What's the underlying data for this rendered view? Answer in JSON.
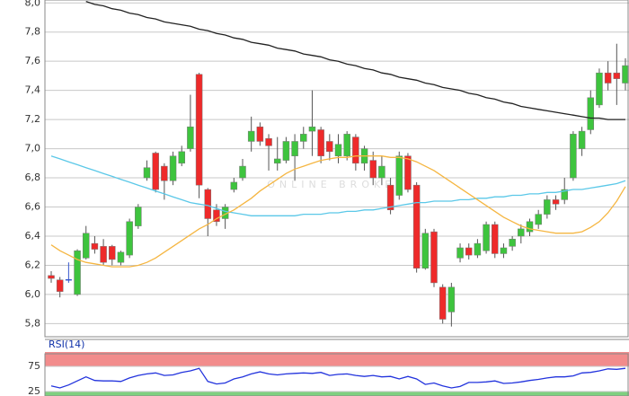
{
  "chart_data": [
    {
      "type": "candlestick",
      "watermark": "ONLINE BROKER",
      "ylim": [
        5.71,
        8.02
      ],
      "yticks": [
        {
          "value": 5.8,
          "label": "5,8"
        },
        {
          "value": 6.0,
          "label": "6,0"
        },
        {
          "value": 6.2,
          "label": "6,2"
        },
        {
          "value": 6.4,
          "label": "6,4"
        },
        {
          "value": 6.6,
          "label": "6,6"
        },
        {
          "value": 6.8,
          "label": "6,8"
        },
        {
          "value": 7.0,
          "label": "7,0"
        },
        {
          "value": 7.2,
          "label": "7,2"
        },
        {
          "value": 7.4,
          "label": "7,4"
        },
        {
          "value": 7.6,
          "label": "7,6"
        },
        {
          "value": 7.8,
          "label": "7,8"
        },
        {
          "value": 8.0,
          "label": "8,0"
        }
      ],
      "grid": true,
      "up_color": "#3ec43e",
      "down_color": "#ee2a2a",
      "flat_color": "#3355cc",
      "open": [
        6.13,
        6.1,
        6.1,
        6.0,
        6.25,
        6.35,
        6.33,
        6.33,
        6.22,
        6.27,
        6.47,
        6.8,
        6.97,
        6.88,
        6.78,
        6.9,
        7.0,
        7.51,
        6.72,
        6.58,
        6.52,
        6.72,
        6.8,
        7.05,
        7.15,
        7.07,
        6.9,
        6.92,
        6.95,
        7.05,
        7.12,
        7.13,
        7.05,
        6.95,
        6.95,
        7.08,
        6.9,
        6.92,
        6.8,
        6.75,
        6.68,
        6.95,
        6.75,
        6.18,
        6.43,
        6.05,
        5.88,
        6.25,
        6.32,
        6.27,
        6.3,
        6.48,
        6.28,
        6.33,
        6.4,
        6.43,
        6.48,
        6.55,
        6.65,
        6.65,
        6.8,
        7.0,
        7.13,
        7.3,
        7.52,
        7.52,
        7.45
      ],
      "high": [
        6.16,
        6.12,
        6.22,
        6.31,
        6.47,
        6.4,
        6.38,
        6.34,
        6.3,
        6.52,
        6.62,
        6.92,
        6.98,
        6.9,
        6.98,
        7.02,
        7.37,
        7.52,
        6.73,
        6.62,
        6.62,
        6.8,
        6.93,
        7.22,
        7.18,
        7.1,
        7.08,
        7.08,
        7.1,
        7.15,
        7.4,
        7.15,
        7.1,
        7.1,
        7.12,
        7.1,
        7.02,
        6.98,
        6.95,
        6.8,
        6.98,
        6.97,
        6.77,
        6.45,
        6.45,
        6.07,
        6.08,
        6.35,
        6.35,
        6.38,
        6.5,
        6.5,
        6.35,
        6.4,
        6.48,
        6.52,
        6.58,
        6.68,
        6.68,
        6.8,
        7.12,
        7.15,
        7.4,
        7.55,
        7.6,
        7.72,
        7.62
      ],
      "low": [
        6.08,
        5.98,
        6.08,
        5.99,
        6.24,
        6.28,
        6.2,
        6.2,
        6.2,
        6.25,
        6.45,
        6.78,
        6.7,
        6.65,
        6.75,
        6.88,
        6.98,
        6.66,
        6.4,
        6.47,
        6.45,
        6.7,
        6.78,
        6.98,
        7.02,
        6.85,
        6.85,
        6.9,
        6.78,
        7.0,
        6.95,
        6.9,
        6.92,
        6.9,
        6.92,
        6.85,
        6.85,
        6.75,
        6.75,
        6.55,
        6.65,
        6.7,
        6.15,
        6.17,
        6.05,
        5.8,
        5.78,
        6.22,
        6.24,
        6.25,
        6.28,
        6.25,
        6.25,
        6.3,
        6.35,
        6.4,
        6.45,
        6.52,
        6.58,
        6.62,
        6.78,
        6.95,
        7.1,
        7.28,
        7.4,
        7.3,
        7.4
      ],
      "close": [
        6.11,
        6.02,
        6.1,
        6.3,
        6.42,
        6.31,
        6.22,
        6.24,
        6.29,
        6.5,
        6.6,
        6.87,
        6.72,
        6.78,
        6.95,
        6.98,
        7.15,
        6.75,
        6.52,
        6.5,
        6.6,
        6.77,
        6.88,
        7.12,
        7.05,
        7.02,
        6.93,
        7.05,
        7.05,
        7.1,
        7.15,
        6.95,
        6.98,
        7.03,
        7.1,
        6.9,
        7.0,
        6.8,
        6.88,
        6.58,
        6.95,
        6.72,
        6.18,
        6.42,
        6.08,
        5.83,
        6.05,
        6.32,
        6.27,
        6.35,
        6.48,
        6.28,
        6.32,
        6.38,
        6.45,
        6.5,
        6.55,
        6.65,
        6.62,
        6.72,
        7.1,
        7.12,
        7.35,
        7.52,
        7.45,
        7.48,
        7.57
      ],
      "series": [
        {
          "color": "#222222",
          "values": [
            null,
            null,
            null,
            null,
            8.01,
            7.99,
            7.98,
            7.96,
            7.95,
            7.93,
            7.92,
            7.9,
            7.89,
            7.87,
            7.86,
            7.85,
            7.84,
            7.82,
            7.81,
            7.79,
            7.78,
            7.76,
            7.75,
            7.73,
            7.72,
            7.71,
            7.69,
            7.68,
            7.67,
            7.65,
            7.64,
            7.63,
            7.61,
            7.6,
            7.58,
            7.57,
            7.55,
            7.54,
            7.52,
            7.51,
            7.49,
            7.48,
            7.47,
            7.45,
            7.44,
            7.42,
            7.41,
            7.4,
            7.38,
            7.37,
            7.35,
            7.34,
            7.32,
            7.31,
            7.29,
            7.28,
            7.27,
            7.26,
            7.25,
            7.24,
            7.23,
            7.22,
            7.21,
            7.21,
            7.2,
            7.2,
            7.2
          ]
        },
        {
          "color": "#5bc8e8",
          "values": [
            6.95,
            6.93,
            6.91,
            6.89,
            6.87,
            6.85,
            6.83,
            6.81,
            6.79,
            6.77,
            6.75,
            6.73,
            6.71,
            6.69,
            6.67,
            6.65,
            6.63,
            6.62,
            6.61,
            6.59,
            6.57,
            6.56,
            6.55,
            6.54,
            6.54,
            6.54,
            6.54,
            6.54,
            6.54,
            6.55,
            6.55,
            6.55,
            6.56,
            6.56,
            6.57,
            6.57,
            6.58,
            6.58,
            6.59,
            6.6,
            6.61,
            6.62,
            6.63,
            6.63,
            6.64,
            6.64,
            6.64,
            6.65,
            6.65,
            6.66,
            6.66,
            6.67,
            6.67,
            6.68,
            6.68,
            6.69,
            6.69,
            6.7,
            6.7,
            6.71,
            6.72,
            6.72,
            6.73,
            6.74,
            6.75,
            6.76,
            6.78
          ]
        },
        {
          "color": "#f5b642",
          "values": [
            6.34,
            6.3,
            6.27,
            6.24,
            6.22,
            6.21,
            6.2,
            6.19,
            6.19,
            6.19,
            6.2,
            6.22,
            6.25,
            6.29,
            6.33,
            6.37,
            6.41,
            6.45,
            6.48,
            6.52,
            6.55,
            6.58,
            6.62,
            6.66,
            6.71,
            6.75,
            6.79,
            6.83,
            6.86,
            6.88,
            6.9,
            6.92,
            6.93,
            6.94,
            6.94,
            6.95,
            6.95,
            6.95,
            6.95,
            6.94,
            6.94,
            6.93,
            6.91,
            6.88,
            6.85,
            6.81,
            6.77,
            6.73,
            6.69,
            6.65,
            6.61,
            6.57,
            6.53,
            6.5,
            6.47,
            6.45,
            6.44,
            6.43,
            6.42,
            6.42,
            6.42,
            6.43,
            6.46,
            6.5,
            6.56,
            6.64,
            6.74
          ]
        }
      ]
    },
    {
      "type": "line",
      "title": "RSI(14)",
      "ylim": [
        16,
        100
      ],
      "yticks": [
        25,
        75
      ],
      "band_colors": [
        "#7fd07f",
        "#f28c8c"
      ],
      "series": [
        {
          "color": "#2233dd",
          "values": [
            36,
            32,
            38,
            46,
            54,
            47,
            46,
            46,
            45,
            52,
            57,
            60,
            62,
            57,
            58,
            63,
            66,
            71,
            45,
            40,
            42,
            50,
            54,
            60,
            64,
            60,
            58,
            60,
            61,
            62,
            61,
            63,
            57,
            59,
            60,
            57,
            55,
            57,
            54,
            55,
            50,
            55,
            50,
            39,
            42,
            36,
            32,
            35,
            43,
            43,
            44,
            46,
            41,
            42,
            44,
            47,
            49,
            52,
            54,
            54,
            56,
            62,
            63,
            66,
            70,
            69,
            71
          ]
        }
      ]
    }
  ]
}
